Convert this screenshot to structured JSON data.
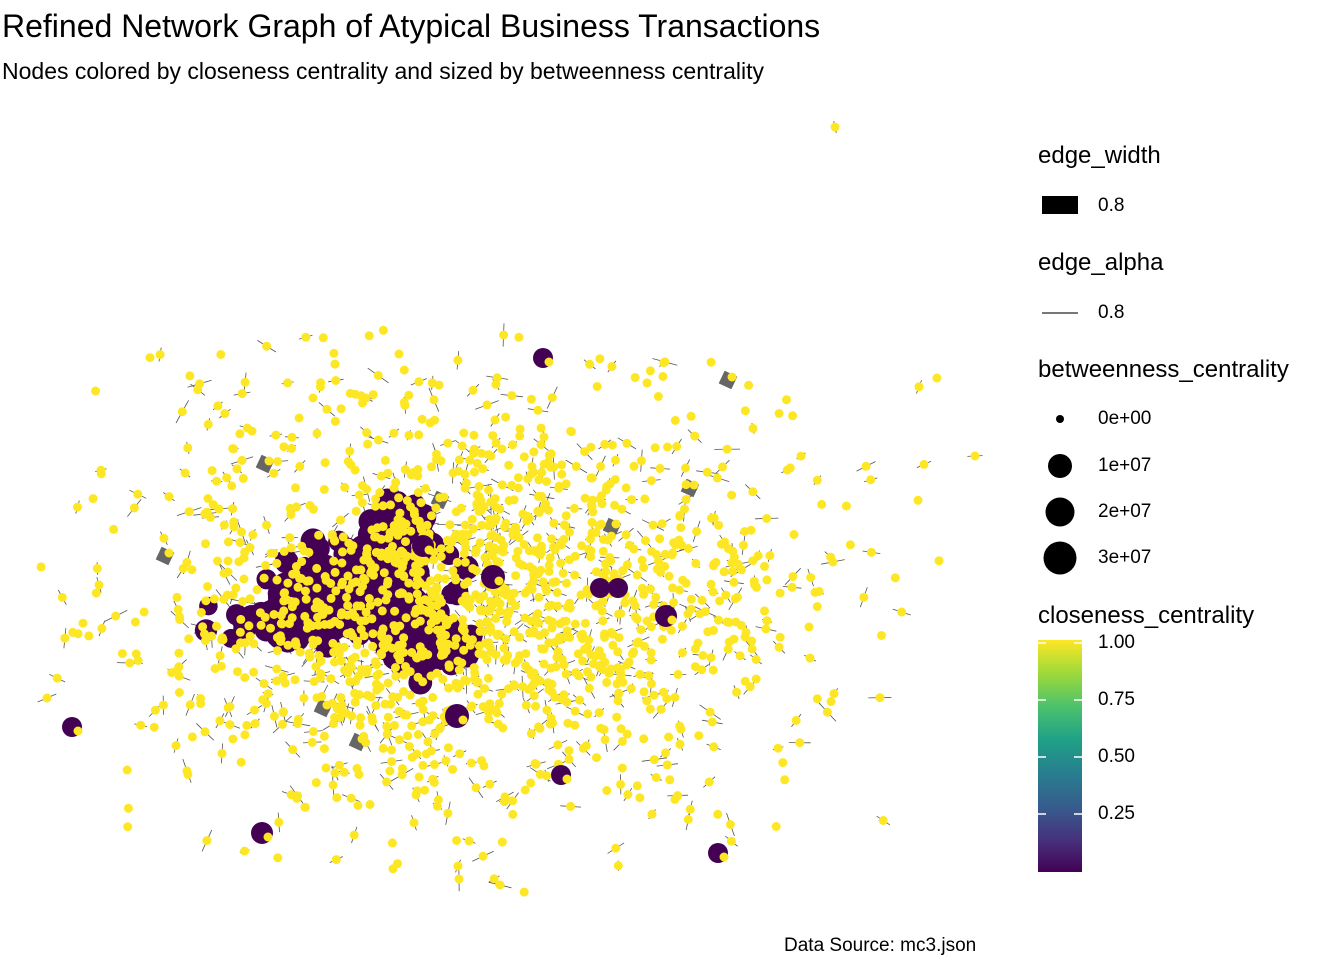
{
  "chart_data": {
    "type": "network",
    "title": "Refined Network Graph of Atypical Business Transactions",
    "subtitle": "Nodes colored by closeness centrality and sized by betweenness centrality",
    "caption": "Data Source: mc3.json",
    "legends": {
      "edge_width": {
        "title": "edge_width",
        "value_label": "0.8",
        "value": 0.8
      },
      "edge_alpha": {
        "title": "edge_alpha",
        "value_label": "0.8",
        "value": 0.8
      },
      "betweenness_centrality": {
        "title": "betweenness_centrality",
        "breaks": [
          "0e+00",
          "1e+07",
          "2e+07",
          "3e+07"
        ],
        "values": [
          0,
          10000000,
          20000000,
          30000000
        ]
      },
      "closeness_centrality": {
        "title": "closeness_centrality",
        "breaks": [
          "1.00",
          "0.75",
          "0.50",
          "0.25"
        ],
        "values": [
          1.0,
          0.75,
          0.5,
          0.25
        ],
        "colormap": "viridis",
        "low_color": "#440154",
        "high_color": "#FDE725"
      }
    },
    "node_count_estimate": 1500,
    "hub_clusters_low_closeness": 12,
    "colors": {
      "high_closeness": "#FDE725",
      "low_closeness": "#440154",
      "edge": "#000000"
    }
  }
}
